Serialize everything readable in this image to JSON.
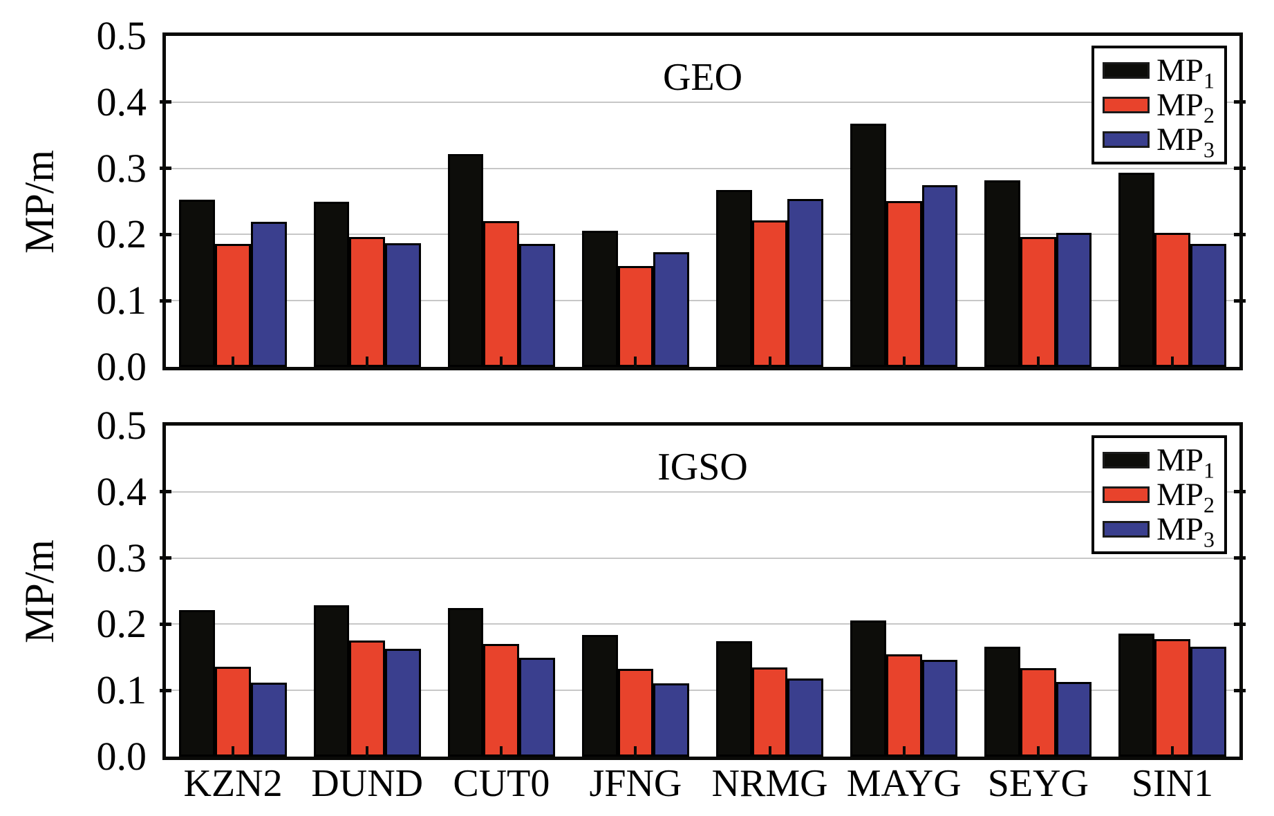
{
  "figure": {
    "background": "#ffffff",
    "text_color": "#000000",
    "gridline_color": "#c7c7c7",
    "frame_color": "#0a0a08",
    "series_colors": {
      "MP1": "#0d0d0a",
      "MP2": "#e8432c",
      "MP3": "#3a3f8e"
    }
  },
  "chart_data": [
    {
      "type": "bar",
      "title": "GEO",
      "ylabel": "MP/m",
      "ylim": [
        0,
        0.5
      ],
      "ytick_labels": [
        "0.0",
        "0.1",
        "0.2",
        "0.3",
        "0.4",
        "0.5"
      ],
      "grid": true,
      "legend_position": "top-right",
      "categories": [
        "KZN2",
        "DUND",
        "CUT0",
        "JFNG",
        "NRMG",
        "MAYG",
        "SEYG",
        "SIN1"
      ],
      "series": [
        {
          "name": "MP1",
          "legend_text": "MP",
          "legend_sub": "1",
          "color": "#0d0d0a",
          "values": [
            0.253,
            0.249,
            0.322,
            0.206,
            0.267,
            0.367,
            0.282,
            0.293
          ]
        },
        {
          "name": "MP2",
          "legend_text": "MP",
          "legend_sub": "2",
          "color": "#e8432c",
          "values": [
            0.186,
            0.196,
            0.22,
            0.152,
            0.221,
            0.251,
            0.196,
            0.202
          ]
        },
        {
          "name": "MP3",
          "legend_text": "MP",
          "legend_sub": "3",
          "color": "#3a3f8e",
          "values": [
            0.219,
            0.187,
            0.186,
            0.173,
            0.254,
            0.275,
            0.203,
            0.186
          ]
        }
      ]
    },
    {
      "type": "bar",
      "title": "IGSO",
      "ylabel": "MP/m",
      "ylim": [
        0,
        0.5
      ],
      "ytick_labels": [
        "0.0",
        "0.1",
        "0.2",
        "0.3",
        "0.4",
        "0.5"
      ],
      "grid": true,
      "legend_position": "top-right",
      "categories": [
        "KZN2",
        "DUND",
        "CUT0",
        "JFNG",
        "NRMG",
        "MAYG",
        "SEYG",
        "SIN1"
      ],
      "series": [
        {
          "name": "MP1",
          "legend_text": "MP",
          "legend_sub": "1",
          "color": "#0d0d0a",
          "values": [
            0.221,
            0.229,
            0.224,
            0.184,
            0.174,
            0.206,
            0.166,
            0.186
          ]
        },
        {
          "name": "MP2",
          "legend_text": "MP",
          "legend_sub": "2",
          "color": "#e8432c",
          "values": [
            0.136,
            0.175,
            0.17,
            0.133,
            0.135,
            0.155,
            0.134,
            0.177
          ]
        },
        {
          "name": "MP3",
          "legend_text": "MP",
          "legend_sub": "3",
          "color": "#3a3f8e",
          "values": [
            0.112,
            0.163,
            0.149,
            0.111,
            0.118,
            0.146,
            0.113,
            0.166
          ]
        }
      ]
    }
  ]
}
